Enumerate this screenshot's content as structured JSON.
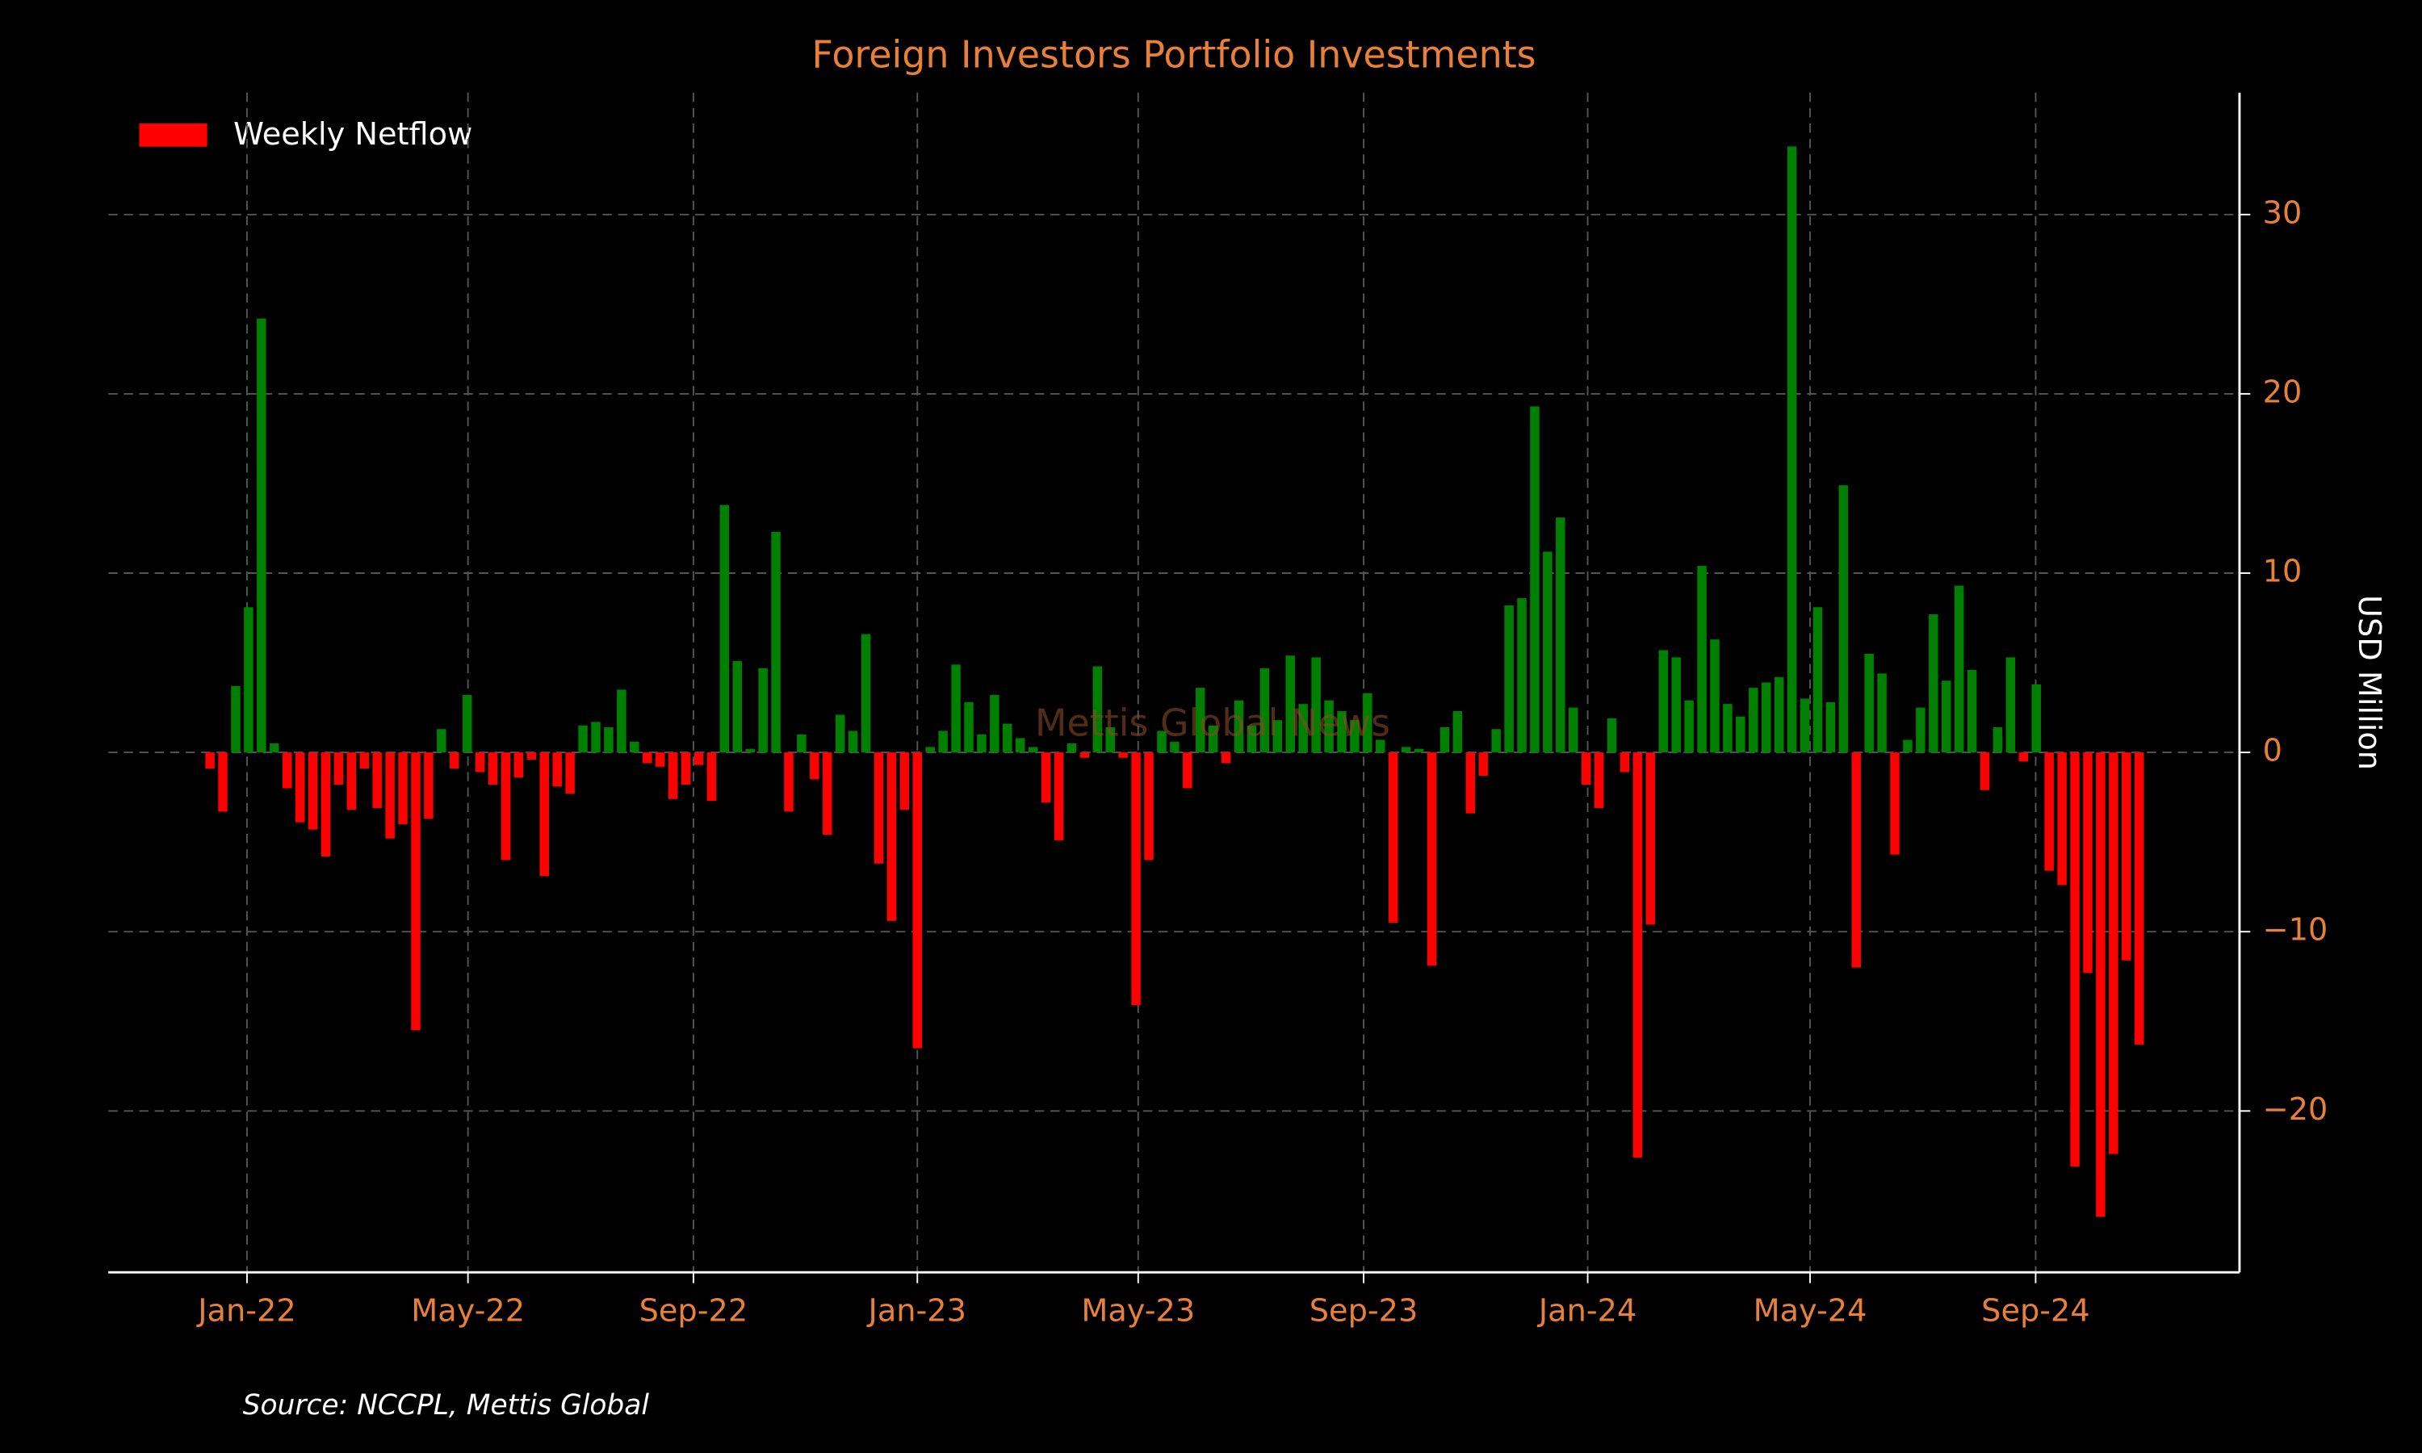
{
  "chart_data": {
    "type": "bar",
    "title": "Foreign Investors Portfolio Investments",
    "y_label": "USD Million",
    "watermark": "Mettis Global News",
    "source": "Source: NCCPL, Mettis Global",
    "legend": {
      "label": "Weekly Netflow",
      "position": "upper left"
    },
    "positive_color": "#008000",
    "negative_color": "#ff0000",
    "grid": true,
    "y_axis_side": "right",
    "values": [
      -0.9,
      -3.3,
      3.7,
      8.1,
      24.2,
      0.5,
      -2.0,
      -3.9,
      -4.3,
      -5.8,
      -1.8,
      -3.2,
      -0.9,
      -3.1,
      -4.8,
      -4.0,
      -15.5,
      -3.7,
      1.3,
      -0.9,
      3.2,
      -1.1,
      -1.8,
      -6.0,
      -1.4,
      -0.4,
      -6.9,
      -1.9,
      -2.3,
      1.5,
      1.7,
      1.4,
      3.5,
      0.6,
      -0.6,
      -0.8,
      -2.6,
      -1.8,
      -0.7,
      -2.7,
      13.8,
      5.1,
      0.2,
      4.7,
      12.3,
      -3.3,
      1.0,
      -1.5,
      -4.6,
      2.1,
      1.2,
      6.6,
      -6.2,
      -9.4,
      -3.2,
      -16.5,
      0.3,
      1.2,
      4.9,
      2.8,
      1.0,
      3.2,
      1.6,
      0.8,
      0.3,
      -2.8,
      -4.9,
      0.5,
      -0.3,
      4.8,
      1.4,
      -0.3,
      -14.1,
      -6.0,
      1.2,
      0.6,
      -2.0,
      3.6,
      1.5,
      -0.6,
      2.9,
      1.5,
      4.7,
      1.8,
      5.4,
      2.7,
      5.3,
      2.9,
      2.3,
      1.8,
      3.3,
      0.7,
      -9.5,
      0.3,
      0.2,
      -11.9,
      1.4,
      2.3,
      -3.4,
      -1.3,
      1.3,
      8.2,
      8.6,
      19.3,
      11.2,
      13.1,
      2.5,
      -1.8,
      -3.1,
      1.9,
      -1.1,
      -22.6,
      -9.6,
      5.7,
      5.3,
      2.9,
      10.4,
      6.3,
      2.7,
      2.0,
      3.6,
      3.9,
      4.2,
      33.8,
      3.0,
      8.1,
      2.8,
      14.9,
      -12.0,
      5.5,
      4.4,
      -5.7,
      0.7,
      2.5,
      7.7,
      4.0,
      9.3,
      4.6,
      -2.1,
      1.4,
      5.3,
      -0.5,
      3.8,
      -6.6,
      -7.4,
      -23.1,
      -12.3,
      -25.9,
      -22.4,
      -11.6,
      -16.3
    ],
    "xlim": [
      -7.9,
      157.8
    ],
    "xticks": [
      {
        "value": 2.88,
        "label": "Jan-22"
      },
      {
        "value": 20.06,
        "label": "May-22"
      },
      {
        "value": 37.59,
        "label": "Sep-22"
      },
      {
        "value": 55.0,
        "label": "Jan-23"
      },
      {
        "value": 72.17,
        "label": "May-23"
      },
      {
        "value": 89.7,
        "label": "Sep-23"
      },
      {
        "value": 107.12,
        "label": "Jan-24"
      },
      {
        "value": 124.41,
        "label": "May-24"
      },
      {
        "value": 141.95,
        "label": "Sep-24"
      }
    ],
    "ylim": [
      -29,
      36.8
    ],
    "yticks": [
      {
        "value": -20,
        "label": "−20"
      },
      {
        "value": -10,
        "label": "−10"
      },
      0,
      10,
      20,
      30
    ]
  }
}
